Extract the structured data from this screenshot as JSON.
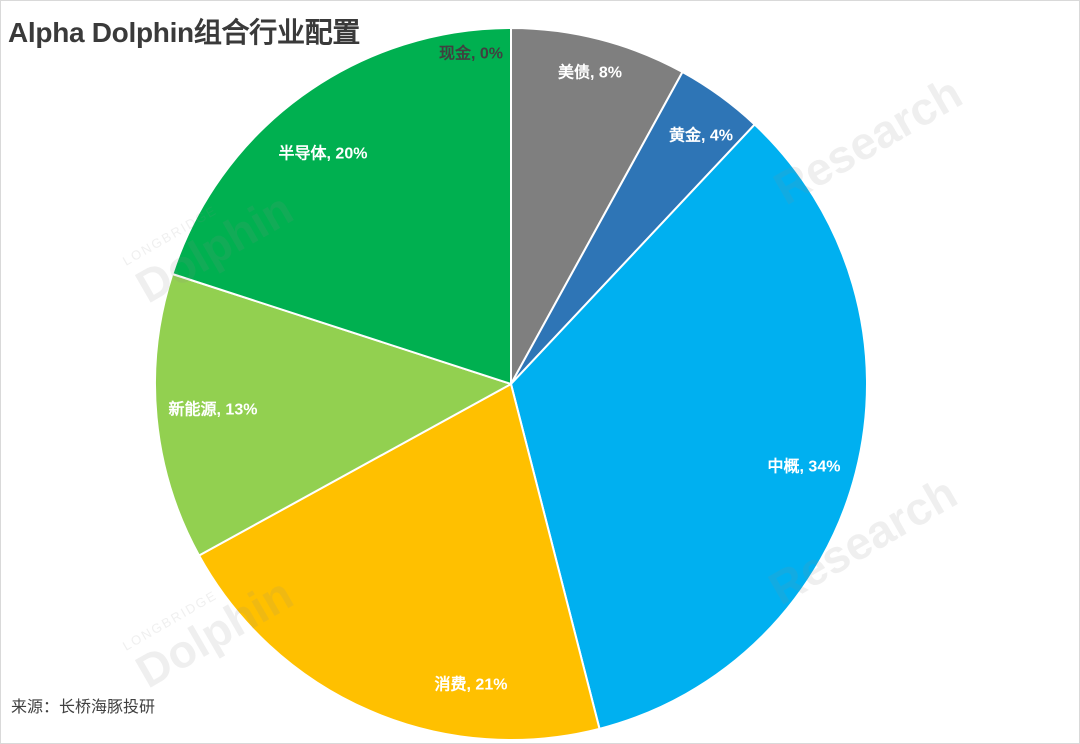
{
  "chart_data": {
    "type": "pie",
    "title": "Alpha Dolphin组合行业配置",
    "categories": [
      "美债",
      "黄金",
      "中概",
      "消费",
      "新能源",
      "半导体",
      "现金"
    ],
    "values": [
      8,
      4,
      34,
      21,
      13,
      20,
      0
    ],
    "data_labels": [
      "美债, 8%",
      "黄金, 4%",
      "中概, 34%",
      "消费, 21%",
      "新能源, 13%",
      "半导体, 20%",
      "现金, 0%"
    ],
    "colors": [
      "#7F7F7F",
      "#2E75B6",
      "#00B0F0",
      "#FFC000",
      "#92D050",
      "#00B050",
      null
    ]
  },
  "source": "来源：长桥海豚投研",
  "watermark": {
    "brand": "LONGBRIDGE",
    "name": "Dolphin",
    "tagline": "Research"
  }
}
